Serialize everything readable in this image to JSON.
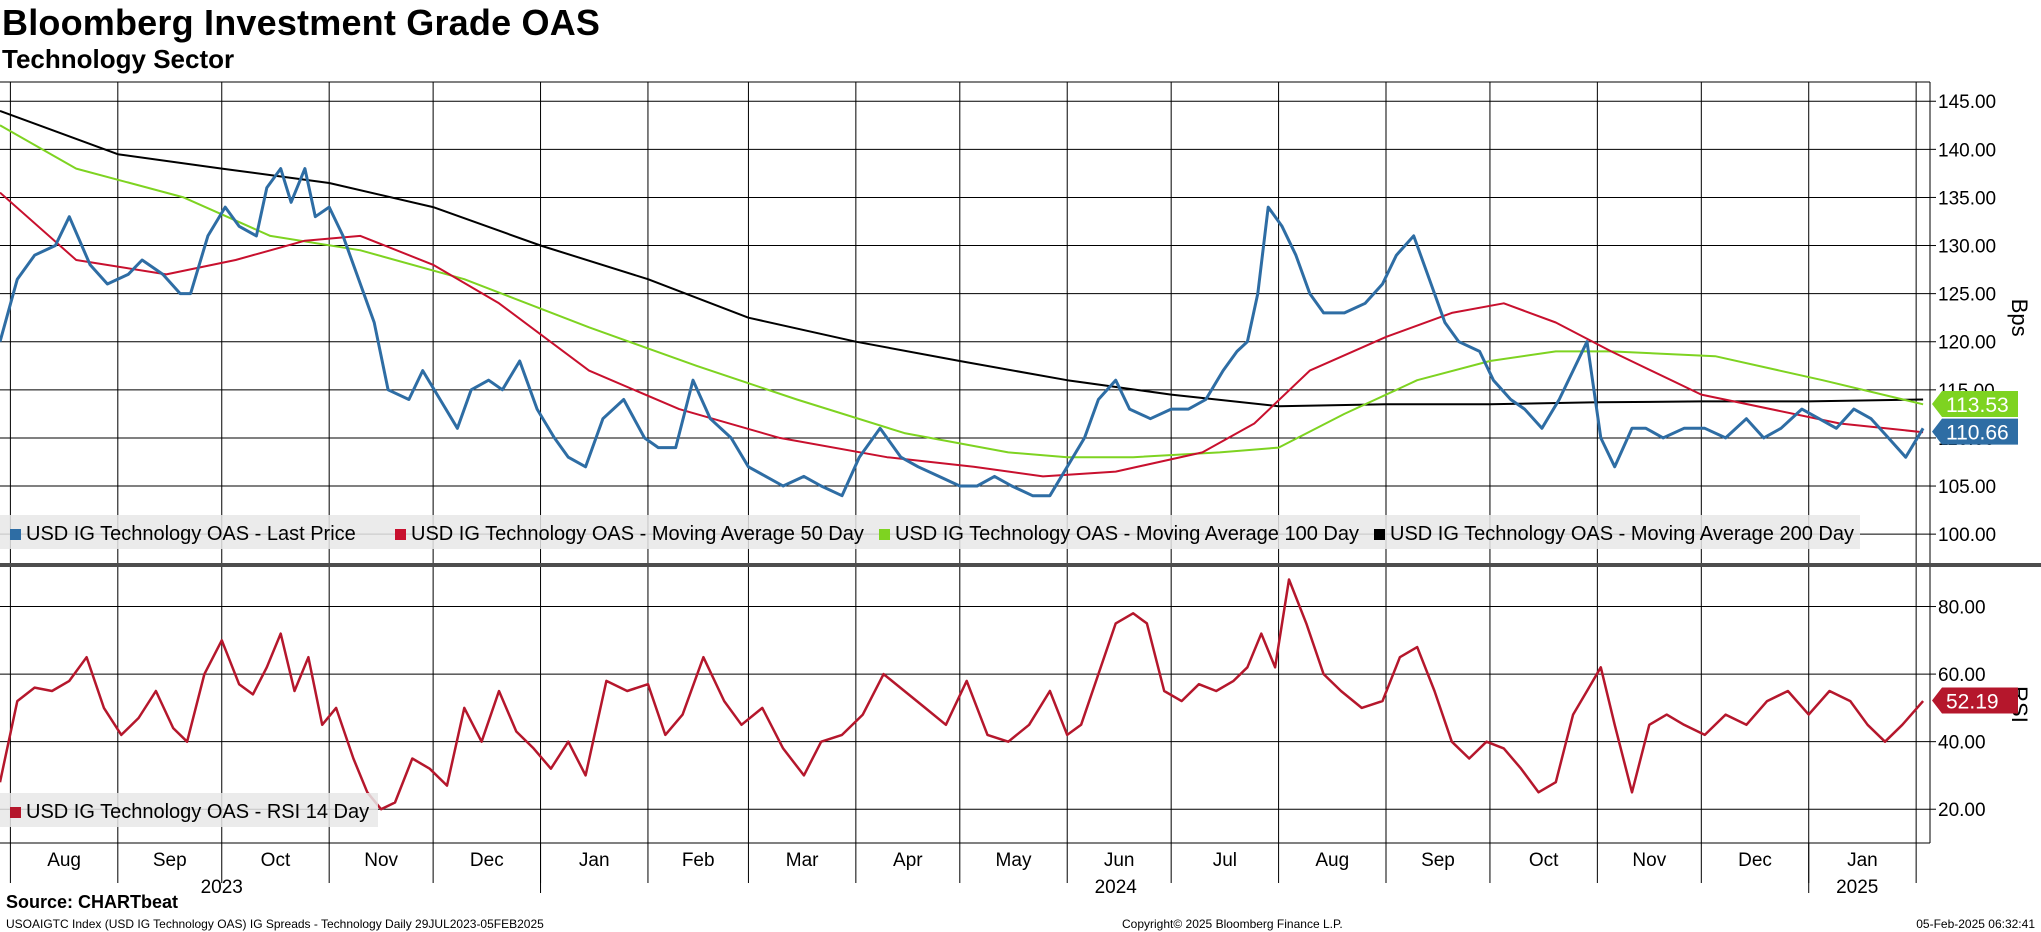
{
  "title": "Bloomberg Investment Grade OAS",
  "subtitle": "Technology Sector",
  "source": "Source: CHARTbeat",
  "footer": {
    "left": "USOAIGTC Index (USD IG Technology OAS) IG Spreads - Technology  Daily 29JUL2023-05FEB2025",
    "center": "Copyright© 2025 Bloomberg Finance L.P.",
    "right": "05-Feb-2025 06:32:41"
  },
  "colors": {
    "last_price": "#2e6da4",
    "ma50": "#c8102e",
    "ma100": "#7ed321",
    "ma200": "#000000",
    "rsi": "#b5172c",
    "divider": "#4d4d4d",
    "grid": "#000000"
  },
  "chart_data": [
    {
      "type": "line",
      "panel": "price",
      "ylabel": "Bps",
      "ylim": [
        97,
        147
      ],
      "yticks": [
        "145.00",
        "140.00",
        "135.00",
        "130.00",
        "125.00",
        "120.00",
        "115.00",
        "110.00",
        "105.00",
        "100.00"
      ],
      "x_start": "2023-07-29",
      "x_end": "2025-02-05",
      "month_ticks": [
        "2023-08-01",
        "2023-09-01",
        "2023-10-01",
        "2023-11-01",
        "2023-12-01",
        "2024-01-01",
        "2024-02-01",
        "2024-03-01",
        "2024-04-01",
        "2024-05-01",
        "2024-06-01",
        "2024-07-01",
        "2024-08-01",
        "2024-09-01",
        "2024-10-01",
        "2024-11-01",
        "2024-12-01",
        "2025-01-01",
        "2025-02-01"
      ],
      "month_labels": [
        "Aug",
        "Sep",
        "Oct",
        "Nov",
        "Dec",
        "Jan",
        "Feb",
        "Mar",
        "Apr",
        "May",
        "Jun",
        "Jul",
        "Aug",
        "Sep",
        "Oct",
        "Nov",
        "Dec",
        "Jan"
      ],
      "year_labels": [
        {
          "text": "2023",
          "date": "2023-10-01"
        },
        {
          "text": "2024",
          "date": "2024-06-15"
        },
        {
          "text": "2025",
          "date": "2025-01-15"
        }
      ],
      "legend_position": "bottom-left",
      "series": [
        {
          "name": "USD IG Technology OAS - Last Price",
          "color_key": "last_price",
          "last_value_label": "110.66",
          "x": [
            "2023-07-29",
            "2023-08-03",
            "2023-08-08",
            "2023-08-14",
            "2023-08-18",
            "2023-08-24",
            "2023-08-29",
            "2023-09-04",
            "2023-09-08",
            "2023-09-14",
            "2023-09-19",
            "2023-09-22",
            "2023-09-27",
            "2023-10-02",
            "2023-10-06",
            "2023-10-11",
            "2023-10-14",
            "2023-10-18",
            "2023-10-21",
            "2023-10-25",
            "2023-10-28",
            "2023-11-01",
            "2023-11-05",
            "2023-11-09",
            "2023-11-14",
            "2023-11-18",
            "2023-11-24",
            "2023-11-28",
            "2023-12-03",
            "2023-12-08",
            "2023-12-12",
            "2023-12-17",
            "2023-12-21",
            "2023-12-26",
            "2023-12-31",
            "2024-01-05",
            "2024-01-09",
            "2024-01-14",
            "2024-01-19",
            "2024-01-25",
            "2024-01-31",
            "2024-02-04",
            "2024-02-09",
            "2024-02-14",
            "2024-02-19",
            "2024-02-25",
            "2024-03-01",
            "2024-03-06",
            "2024-03-11",
            "2024-03-17",
            "2024-03-22",
            "2024-03-28",
            "2024-04-02",
            "2024-04-08",
            "2024-04-14",
            "2024-04-19",
            "2024-04-25",
            "2024-05-01",
            "2024-05-06",
            "2024-05-11",
            "2024-05-16",
            "2024-05-22",
            "2024-05-27",
            "2024-06-01",
            "2024-06-06",
            "2024-06-10",
            "2024-06-15",
            "2024-06-19",
            "2024-06-25",
            "2024-07-01",
            "2024-07-06",
            "2024-07-11",
            "2024-07-16",
            "2024-07-20",
            "2024-07-23",
            "2024-07-26",
            "2024-07-29",
            "2024-08-02",
            "2024-08-06",
            "2024-08-10",
            "2024-08-14",
            "2024-08-20",
            "2024-08-26",
            "2024-08-31",
            "2024-09-04",
            "2024-09-09",
            "2024-09-13",
            "2024-09-18",
            "2024-09-22",
            "2024-09-28",
            "2024-10-02",
            "2024-10-07",
            "2024-10-11",
            "2024-10-16",
            "2024-10-21",
            "2024-10-25",
            "2024-10-29",
            "2024-11-02",
            "2024-11-06",
            "2024-11-11",
            "2024-11-15",
            "2024-11-20",
            "2024-11-26",
            "2024-12-02",
            "2024-12-08",
            "2024-12-14",
            "2024-12-19",
            "2024-12-24",
            "2024-12-30",
            "2025-01-04",
            "2025-01-09",
            "2025-01-14",
            "2025-01-19",
            "2025-01-24",
            "2025-01-29",
            "2025-02-03"
          ],
          "y": [
            120,
            126.5,
            129,
            130,
            133,
            128,
            126,
            127,
            128.5,
            127,
            125,
            125,
            131,
            134,
            132,
            131,
            136,
            138,
            134.5,
            138,
            133,
            134,
            131,
            127,
            122,
            115,
            114,
            117,
            114,
            111,
            115,
            116,
            115,
            118,
            113,
            110,
            108,
            107,
            112,
            114,
            110,
            109,
            109,
            116,
            112,
            110,
            107,
            106,
            105,
            106,
            105,
            104,
            108,
            111,
            108,
            107,
            106,
            105,
            105,
            106,
            105,
            104,
            104,
            107,
            110,
            114,
            116,
            113,
            112,
            113,
            113,
            114,
            117,
            119,
            120,
            125,
            134,
            132,
            129,
            125,
            123,
            123,
            124,
            126,
            129,
            131,
            127,
            122,
            120,
            119,
            116,
            114,
            113,
            111,
            114,
            117,
            120,
            110,
            107,
            111,
            111,
            110,
            111,
            111,
            110,
            112,
            110,
            111,
            113,
            112,
            111,
            113,
            112,
            110,
            108,
            111
          ]
        },
        {
          "name": "USD IG Technology OAS - Moving Average 50 Day",
          "color_key": "ma50",
          "x": [
            "2023-07-29",
            "2023-08-20",
            "2023-09-15",
            "2023-10-05",
            "2023-10-25",
            "2023-11-10",
            "2023-12-01",
            "2023-12-20",
            "2024-01-15",
            "2024-02-10",
            "2024-03-10",
            "2024-04-10",
            "2024-05-05",
            "2024-05-25",
            "2024-06-15",
            "2024-07-10",
            "2024-07-25",
            "2024-08-10",
            "2024-09-01",
            "2024-09-20",
            "2024-10-05",
            "2024-10-20",
            "2024-11-05",
            "2024-12-01",
            "2025-01-10",
            "2025-02-03"
          ],
          "y": [
            135.5,
            128.5,
            127,
            128.5,
            130.5,
            131,
            128,
            124,
            117,
            113,
            110,
            108,
            107,
            106,
            106.5,
            108.5,
            111.5,
            117,
            120.5,
            123,
            124,
            122,
            119,
            114.5,
            111.5,
            110.6
          ]
        },
        {
          "name": "USD IG Technology OAS - Moving Average 100 Day",
          "color_key": "ma100",
          "x": [
            "2023-07-29",
            "2023-08-20",
            "2023-09-20",
            "2023-10-15",
            "2023-11-10",
            "2023-12-10",
            "2024-01-15",
            "2024-02-15",
            "2024-03-15",
            "2024-04-15",
            "2024-05-15",
            "2024-06-01",
            "2024-06-20",
            "2024-07-15",
            "2024-08-01",
            "2024-08-20",
            "2024-09-10",
            "2024-10-01",
            "2024-10-20",
            "2024-11-05",
            "2024-12-05",
            "2025-01-05",
            "2025-02-03"
          ],
          "y": [
            142.5,
            138,
            135,
            131,
            129.5,
            126.5,
            121.5,
            117.5,
            114,
            110.5,
            108.5,
            108,
            108,
            108.5,
            109,
            112.5,
            116,
            118,
            119,
            119,
            118.5,
            116,
            113.5
          ]
        },
        {
          "name": "USD IG Technology OAS - Moving Average 200 Day",
          "color_key": "ma200",
          "x": [
            "2023-07-29",
            "2023-09-01",
            "2023-10-01",
            "2023-11-01",
            "2023-12-01",
            "2024-01-01",
            "2024-02-01",
            "2024-03-01",
            "2024-04-01",
            "2024-05-01",
            "2024-06-01",
            "2024-07-01",
            "2024-08-01",
            "2024-09-01",
            "2024-10-01",
            "2024-11-01",
            "2024-12-01",
            "2025-01-01",
            "2025-02-03"
          ],
          "y": [
            144,
            139.5,
            138,
            136.5,
            134,
            130,
            126.5,
            122.5,
            120,
            118,
            116,
            114.5,
            113.3,
            113.5,
            113.5,
            113.7,
            113.8,
            113.8,
            114
          ]
        }
      ],
      "extra_tags": [
        {
          "text": "113.53",
          "value": 113.53,
          "color_key": "ma100"
        }
      ]
    },
    {
      "type": "line",
      "panel": "rsi",
      "ylabel": "RSI",
      "ylim": [
        10,
        92
      ],
      "yticks": [
        "80.00",
        "60.00",
        "40.00",
        "20.00"
      ],
      "legend_position": "bottom-left",
      "series": [
        {
          "name": "USD IG Technology OAS - RSI 14 Day",
          "color_key": "rsi",
          "last_value_label": "52.19",
          "x": [
            "2023-07-29",
            "2023-08-03",
            "2023-08-08",
            "2023-08-13",
            "2023-08-18",
            "2023-08-23",
            "2023-08-28",
            "2023-09-02",
            "2023-09-07",
            "2023-09-12",
            "2023-09-17",
            "2023-09-21",
            "2023-09-26",
            "2023-10-01",
            "2023-10-06",
            "2023-10-10",
            "2023-10-14",
            "2023-10-18",
            "2023-10-22",
            "2023-10-26",
            "2023-10-30",
            "2023-11-03",
            "2023-11-08",
            "2023-11-12",
            "2023-11-16",
            "2023-11-20",
            "2023-11-25",
            "2023-11-30",
            "2023-12-05",
            "2023-12-10",
            "2023-12-15",
            "2023-12-20",
            "2023-12-25",
            "2023-12-30",
            "2024-01-04",
            "2024-01-09",
            "2024-01-14",
            "2024-01-20",
            "2024-01-26",
            "2024-02-01",
            "2024-02-06",
            "2024-02-11",
            "2024-02-17",
            "2024-02-23",
            "2024-02-28",
            "2024-03-05",
            "2024-03-11",
            "2024-03-17",
            "2024-03-22",
            "2024-03-28",
            "2024-04-03",
            "2024-04-09",
            "2024-04-15",
            "2024-04-21",
            "2024-04-27",
            "2024-05-03",
            "2024-05-09",
            "2024-05-15",
            "2024-05-21",
            "2024-05-27",
            "2024-06-01",
            "2024-06-05",
            "2024-06-10",
            "2024-06-15",
            "2024-06-20",
            "2024-06-24",
            "2024-06-29",
            "2024-07-04",
            "2024-07-09",
            "2024-07-14",
            "2024-07-19",
            "2024-07-23",
            "2024-07-27",
            "2024-07-31",
            "2024-08-04",
            "2024-08-09",
            "2024-08-14",
            "2024-08-19",
            "2024-08-25",
            "2024-08-31",
            "2024-09-05",
            "2024-09-10",
            "2024-09-15",
            "2024-09-20",
            "2024-09-25",
            "2024-09-30",
            "2024-10-05",
            "2024-10-10",
            "2024-10-15",
            "2024-10-20",
            "2024-10-25",
            "2024-10-29",
            "2024-11-02",
            "2024-11-06",
            "2024-11-11",
            "2024-11-16",
            "2024-11-21",
            "2024-11-26",
            "2024-12-02",
            "2024-12-08",
            "2024-12-14",
            "2024-12-20",
            "2024-12-26",
            "2025-01-01",
            "2025-01-07",
            "2025-01-13",
            "2025-01-18",
            "2025-01-23",
            "2025-01-28",
            "2025-02-03"
          ],
          "y": [
            28,
            52,
            56,
            55,
            58,
            65,
            50,
            42,
            47,
            55,
            44,
            40,
            60,
            70,
            57,
            54,
            62,
            72,
            55,
            65,
            45,
            50,
            35,
            25,
            20,
            22,
            35,
            32,
            27,
            50,
            40,
            55,
            43,
            38,
            32,
            40,
            30,
            58,
            55,
            57,
            42,
            48,
            65,
            52,
            45,
            50,
            38,
            30,
            40,
            42,
            48,
            60,
            55,
            50,
            45,
            58,
            42,
            40,
            45,
            55,
            42,
            45,
            60,
            75,
            78,
            75,
            55,
            52,
            57,
            55,
            58,
            62,
            72,
            62,
            88,
            75,
            60,
            55,
            50,
            52,
            65,
            68,
            55,
            40,
            35,
            40,
            38,
            32,
            25,
            28,
            48,
            55,
            62,
            45,
            25,
            45,
            48,
            45,
            42,
            48,
            45,
            52,
            55,
            48,
            55,
            52,
            45,
            40,
            45,
            52
          ]
        }
      ]
    }
  ]
}
